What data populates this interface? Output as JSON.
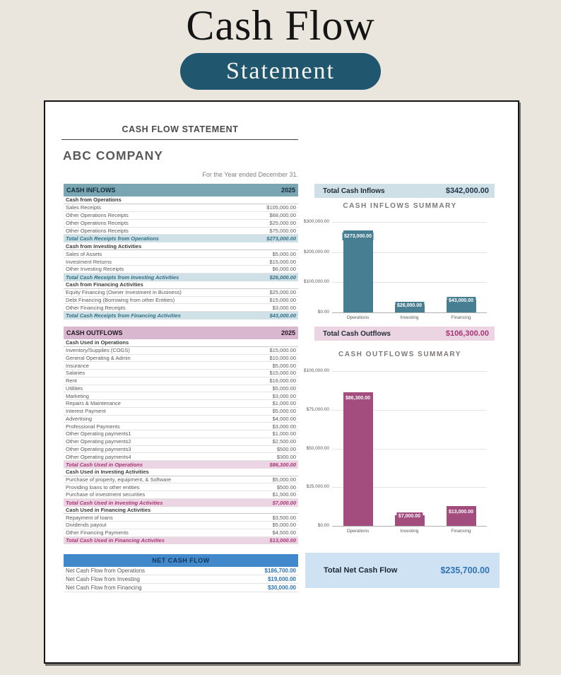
{
  "banner": {
    "title": "Cash Flow",
    "badge": "Statement"
  },
  "page": {
    "statement_title": "CASH FLOW STATEMENT",
    "company": "ABC COMPANY",
    "period": "For the Year ended December 31."
  },
  "inflows": {
    "header": "CASH INFLOWS",
    "year": "2025",
    "rows": [
      {
        "type": "section",
        "label": "Cash from Operations",
        "value": ""
      },
      {
        "type": "item",
        "label": "Sales Receipts",
        "value": "$105,000.00"
      },
      {
        "type": "item",
        "label": "Other Operations Receipts",
        "value": "$68,000.00"
      },
      {
        "type": "item",
        "label": "Other Operations Receipts",
        "value": "$25,000.00"
      },
      {
        "type": "item",
        "label": "Other Operations Receipts",
        "value": "$75,000.00"
      },
      {
        "type": "total",
        "label": "Total Cash Receipts from Operations",
        "value": "$273,000.00"
      },
      {
        "type": "section",
        "label": "Cash from Investing Activities",
        "value": ""
      },
      {
        "type": "item",
        "label": "Sales of Assets",
        "value": "$5,000.00"
      },
      {
        "type": "item",
        "label": "Investment Returns",
        "value": "$15,000.00"
      },
      {
        "type": "item",
        "label": "Other Investing Receipts",
        "value": "$6,000.00"
      },
      {
        "type": "total",
        "label": "Total Cash Receipts from Investing Activities",
        "value": "$26,000.00"
      },
      {
        "type": "section",
        "label": "Cash from Financing Activities",
        "value": ""
      },
      {
        "type": "item",
        "label": "Equity Financing (Owner Investment in Business)",
        "value": "$25,000.00"
      },
      {
        "type": "item",
        "label": "Debt Financing (Borrowing from other Entities)",
        "value": "$15,000.00"
      },
      {
        "type": "item",
        "label": "Other Financing Receipts",
        "value": "$3,000.00"
      },
      {
        "type": "total",
        "label": "Total Cash Receipts from Financing Activities",
        "value": "$43,000.00"
      }
    ]
  },
  "outflows": {
    "header": "CASH OUTFLOWS",
    "year": "2025",
    "rows": [
      {
        "type": "section",
        "label": "Cash Used in Operations",
        "value": ""
      },
      {
        "type": "item",
        "label": "Inventory/Supplies (COGS)",
        "value": "$15,000.00"
      },
      {
        "type": "item",
        "label": "General Operating & Admin",
        "value": "$10,000.00"
      },
      {
        "type": "item",
        "label": "Insurance",
        "value": "$5,000.00"
      },
      {
        "type": "item",
        "label": "Salaries",
        "value": "$15,000.00"
      },
      {
        "type": "item",
        "label": "Rent",
        "value": "$16,000.00"
      },
      {
        "type": "item",
        "label": "Utilities",
        "value": "$5,000.00"
      },
      {
        "type": "item",
        "label": "Marketing",
        "value": "$3,000.00"
      },
      {
        "type": "item",
        "label": "Repairs & Maintenance",
        "value": "$1,000.00"
      },
      {
        "type": "item",
        "label": "Interest Payment",
        "value": "$5,000.00"
      },
      {
        "type": "item",
        "label": "Advertising",
        "value": "$4,000.00"
      },
      {
        "type": "item",
        "label": "Professional Payments",
        "value": "$3,000.00"
      },
      {
        "type": "item",
        "label": "Other Operating payments1",
        "value": "$1,000.00"
      },
      {
        "type": "item",
        "label": "Other Operating payments2",
        "value": "$2,500.00"
      },
      {
        "type": "item",
        "label": "Other Operating payments3",
        "value": "$500.00"
      },
      {
        "type": "item",
        "label": "Other Operating payments4",
        "value": "$300.00"
      },
      {
        "type": "total",
        "label": "Total Cash Used in Operations",
        "value": "$86,300.00"
      },
      {
        "type": "section",
        "label": "Cash Used in Investing Activities",
        "value": ""
      },
      {
        "type": "item",
        "label": "Purchase of property, equipment, & Software",
        "value": "$5,000.00"
      },
      {
        "type": "item",
        "label": "Providing loans to other entities",
        "value": "$500.00"
      },
      {
        "type": "item",
        "label": "Purchase of investment securities",
        "value": "$1,500.00"
      },
      {
        "type": "total",
        "label": "Total Cash Used in Investing Activities",
        "value": "$7,000.00"
      },
      {
        "type": "section",
        "label": "Cash Used in Financing Activities",
        "value": ""
      },
      {
        "type": "item",
        "label": "Repayment of loans",
        "value": "$3,500.00"
      },
      {
        "type": "item",
        "label": "Dividends payout",
        "value": "$5,000.00"
      },
      {
        "type": "item",
        "label": "Other Financing Payments",
        "value": "$4,500.00"
      },
      {
        "type": "total",
        "label": "Total Cash Used in Financing Activities",
        "value": "$13,000.00"
      }
    ]
  },
  "net": {
    "header": "NET CASH FLOW",
    "rows": [
      {
        "type": "net",
        "label": "Net Cash Flow from Operations",
        "value": "$186,700.00"
      },
      {
        "type": "net",
        "label": "Net Cash Flow from Investing",
        "value": "$19,000.00"
      },
      {
        "type": "net",
        "label": "Net Cash Flow from Financing",
        "value": "$30,000.00"
      }
    ]
  },
  "summary": {
    "inflow_label": "Total Cash Inflows",
    "inflow_value": "$342,000.00",
    "outflow_label": "Total Cash Outflows",
    "outflow_value": "$106,300.00",
    "net_label": "Total Net Cash Flow",
    "net_value": "$235,700.00"
  },
  "chart_data": [
    {
      "type": "bar",
      "title": "CASH INFLOWS SUMMARY",
      "categories": [
        "Operations",
        "Investing",
        "Financing"
      ],
      "values": [
        273000,
        26000,
        43000
      ],
      "value_labels": [
        "$273,000.00",
        "$26,000.00",
        "$43,000.00"
      ],
      "ylim": [
        0,
        300000
      ],
      "yticks": [
        0,
        100000,
        200000,
        300000
      ],
      "ytick_labels": [
        "$0.00",
        "$100,000.00",
        "$200,000.00",
        "$300,000.00"
      ],
      "bar_color": "#477e92",
      "grid": true,
      "legend": "none"
    },
    {
      "type": "bar",
      "title": "CASH OUTFLOWS SUMMARY",
      "categories": [
        "Operations",
        "Investing",
        "Financing"
      ],
      "values": [
        86300,
        7000,
        13000
      ],
      "value_labels": [
        "$86,300.00",
        "$7,000.00",
        "$13,000.00"
      ],
      "ylim": [
        0,
        100000
      ],
      "yticks": [
        0,
        25000,
        50000,
        75000,
        100000
      ],
      "ytick_labels": [
        "$0.00",
        "$25,000.00",
        "$50,000.00",
        "$75,000.00",
        "$100,000.00"
      ],
      "bar_color": "#a24d7e",
      "grid": true,
      "legend": "none"
    }
  ],
  "colors": {
    "canvas_bg": "#eae6dd",
    "badge_bg": "#20576f",
    "page_bg": "#ffffff",
    "inflow_header": "#7aa6b4",
    "inflow_light": "#cfe0e6",
    "inflow_text": "#2e7086",
    "inflow_bar": "#477e92",
    "outflow_header": "#d9b7ce",
    "outflow_light": "#ecd5e2",
    "outflow_text": "#a83577",
    "outflow_bar": "#a24d7e",
    "net_header": "#4189ca",
    "net_light": "#cfe2f3",
    "net_text": "#2e74b5"
  }
}
